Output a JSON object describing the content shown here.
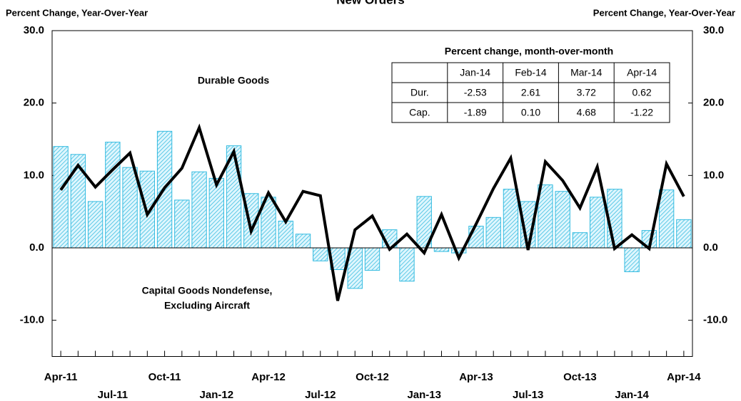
{
  "chart_data": {
    "type": "bar",
    "title": "New Orders",
    "y_label": "Percent Change, Year-Over-Year",
    "y2_label": "Percent Change, Year-Over-Year",
    "categories": [
      "Apr-11",
      null,
      null,
      "Jul-11",
      null,
      null,
      "Oct-11",
      null,
      null,
      "Jan-12",
      null,
      null,
      "Apr-12",
      null,
      null,
      "Jul-12",
      null,
      null,
      "Oct-12",
      null,
      null,
      "Jan-13",
      null,
      null,
      "Apr-13",
      null,
      null,
      "Jul-13",
      null,
      null,
      "Oct-13",
      null,
      null,
      "Jan-14",
      null,
      null,
      "Apr-14"
    ],
    "series": [
      {
        "type": "bar",
        "color": "#33bbe0",
        "fill": "#c8eefa",
        "values": [
          14.0,
          12.9,
          6.4,
          14.6,
          11.1,
          10.6,
          16.1,
          6.6,
          10.5,
          9.6,
          14.1,
          7.5,
          7.0,
          3.7,
          1.9,
          -1.8,
          -3.0,
          -5.6,
          -3.1,
          2.5,
          -4.6,
          7.1,
          -0.5,
          -0.7,
          3.0,
          4.2,
          8.1,
          6.4,
          8.7,
          7.8,
          2.1,
          7.0,
          8.1,
          -3.3,
          2.4,
          8.0,
          3.9
        ]
      },
      {
        "type": "line",
        "color": "#000000",
        "values": [
          8.0,
          11.4,
          8.4,
          10.8,
          13.1,
          4.6,
          8.3,
          11.0,
          16.6,
          8.7,
          13.3,
          2.3,
          7.6,
          3.6,
          7.8,
          7.2,
          -7.3,
          2.5,
          4.4,
          -0.2,
          1.9,
          -0.7,
          4.6,
          -1.4,
          3.3,
          8.2,
          12.4,
          -0.3,
          11.9,
          9.3,
          5.5,
          11.2,
          -0.1,
          1.8,
          -0.1,
          11.6,
          7.1
        ]
      }
    ],
    "ylim": [
      -15,
      30
    ],
    "yticks": [
      {
        "value": -10,
        "label": "-10.0"
      },
      {
        "value": 0,
        "label": "0.0"
      },
      {
        "value": 10,
        "label": "10.0"
      },
      {
        "value": 20,
        "label": "20.0"
      },
      {
        "value": 30,
        "label": "30.0"
      }
    ],
    "annotations": [
      "Durable Goods",
      "Capital Goods Nondefense,",
      "Excluding  Aircraft"
    ],
    "annotation_color": "#33ccee",
    "table": {
      "title": "Percent change, month-over-month",
      "columns": [
        "Jan-14",
        "Feb-14",
        "Mar-14",
        "Apr-14"
      ],
      "rows": [
        [
          "Dur.",
          "-2.53",
          "2.61",
          "3.72",
          "0.62"
        ],
        [
          "Cap.",
          "-1.89",
          "0.10",
          "4.68",
          "-1.22"
        ]
      ]
    }
  }
}
